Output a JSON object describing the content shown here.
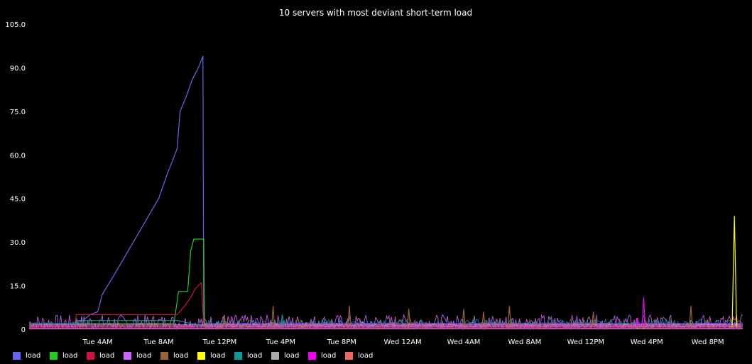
{
  "chart_data": {
    "type": "line",
    "title": "10 servers with most deviant short-term load",
    "xlabel": "",
    "ylabel": "",
    "ylim": [
      0,
      105
    ],
    "yticks": [
      "0",
      "15.0",
      "30.0",
      "45.0",
      "60.0",
      "75.0",
      "90.0",
      "105.0"
    ],
    "xlim_hours": [
      -0.5,
      46.3
    ],
    "xticks": [
      {
        "label": "Tue  4AM",
        "hour": 4
      },
      {
        "label": "Tue  8AM",
        "hour": 8
      },
      {
        "label": "Tue 12PM",
        "hour": 12
      },
      {
        "label": "Tue  4PM",
        "hour": 16
      },
      {
        "label": "Tue  8PM",
        "hour": 20
      },
      {
        "label": "Wed 12AM",
        "hour": 24
      },
      {
        "label": "Wed  4AM",
        "hour": 28
      },
      {
        "label": "Wed  8AM",
        "hour": 32
      },
      {
        "label": "Wed 12PM",
        "hour": 36
      },
      {
        "label": "Wed  4PM",
        "hour": 40
      },
      {
        "label": "Wed  8PM",
        "hour": 44
      }
    ],
    "grid": false,
    "legend_position": "bottom-left",
    "series": [
      {
        "name": "load",
        "color": "#6666ee",
        "points": [
          [
            -0.5,
            2
          ],
          [
            2.5,
            2
          ],
          [
            3.0,
            3
          ],
          [
            3.5,
            5
          ],
          [
            4.0,
            6
          ],
          [
            4.3,
            12
          ],
          [
            5,
            18
          ],
          [
            6,
            27
          ],
          [
            7,
            36
          ],
          [
            8,
            45
          ],
          [
            8.6,
            54
          ],
          [
            9.2,
            62
          ],
          [
            9.4,
            75
          ],
          [
            9.8,
            80
          ],
          [
            10.2,
            86
          ],
          [
            10.6,
            90
          ],
          [
            10.9,
            94
          ],
          [
            10.95,
            2
          ],
          [
            46.3,
            2
          ]
        ]
      },
      {
        "name": "load",
        "color": "#22cc22",
        "points": [
          [
            -0.5,
            2
          ],
          [
            9.0,
            2
          ],
          [
            9.3,
            13
          ],
          [
            9.9,
            13
          ],
          [
            10.0,
            20
          ],
          [
            10.1,
            27
          ],
          [
            10.3,
            31
          ],
          [
            10.95,
            31
          ],
          [
            11.0,
            1
          ],
          [
            46.3,
            1
          ]
        ]
      },
      {
        "name": "load",
        "color": "#cc1144",
        "points": [
          [
            -0.5,
            2
          ],
          [
            2.5,
            2
          ],
          [
            2.6,
            5
          ],
          [
            9.2,
            5
          ],
          [
            9.7,
            8
          ],
          [
            10.1,
            11
          ],
          [
            10.4,
            14
          ],
          [
            10.8,
            16
          ],
          [
            10.95,
            1
          ],
          [
            46.3,
            1
          ]
        ]
      },
      {
        "name": "load",
        "color": "#cc66ff",
        "points": [
          [
            -0.5,
            1.5
          ],
          [
            46.3,
            1.5
          ]
        ]
      },
      {
        "name": "load",
        "color": "#996633",
        "points": [
          [
            -0.5,
            0.5
          ],
          [
            12.2,
            0.5
          ],
          [
            12.3,
            5
          ],
          [
            12.4,
            0.5
          ],
          [
            15.4,
            0.5
          ],
          [
            15.5,
            8
          ],
          [
            15.6,
            0.5
          ],
          [
            20.4,
            0.5
          ],
          [
            20.5,
            8
          ],
          [
            20.6,
            0.5
          ],
          [
            24.3,
            0.5
          ],
          [
            24.4,
            7
          ],
          [
            24.5,
            0.5
          ],
          [
            27.9,
            0.5
          ],
          [
            28.0,
            7
          ],
          [
            28.1,
            0.5
          ],
          [
            29.2,
            0.5
          ],
          [
            29.3,
            6
          ],
          [
            29.4,
            0.5
          ],
          [
            30.9,
            0.5
          ],
          [
            31.0,
            8
          ],
          [
            31.1,
            0.5
          ],
          [
            36.4,
            0.5
          ],
          [
            36.5,
            6
          ],
          [
            36.6,
            0.5
          ],
          [
            42.8,
            0.5
          ],
          [
            42.9,
            8
          ],
          [
            43.0,
            0.5
          ],
          [
            46.3,
            0.5
          ]
        ]
      },
      {
        "name": "load",
        "color": "#ffff00",
        "points": [
          [
            -0.5,
            0.3
          ],
          [
            45.6,
            0.3
          ],
          [
            45.75,
            39
          ],
          [
            45.9,
            0.3
          ],
          [
            46.3,
            0.3
          ]
        ]
      },
      {
        "name": "load",
        "color": "#119999",
        "points": [
          [
            -0.5,
            2
          ],
          [
            2.5,
            2
          ],
          [
            2.6,
            3
          ],
          [
            9.2,
            3
          ],
          [
            11.0,
            1
          ],
          [
            16.0,
            1
          ],
          [
            16.1,
            5
          ],
          [
            16.2,
            1
          ],
          [
            46.3,
            1
          ]
        ]
      },
      {
        "name": "load",
        "color": "#aaaaaa",
        "points": [
          [
            -0.5,
            0.2
          ],
          [
            46.3,
            0.2
          ]
        ]
      },
      {
        "name": "load",
        "color": "#ee00ee",
        "points": [
          [
            -0.5,
            0.5
          ],
          [
            39.3,
            0.5
          ],
          [
            39.4,
            4
          ],
          [
            39.5,
            0.5
          ],
          [
            39.7,
            0.5
          ],
          [
            39.8,
            11
          ],
          [
            39.9,
            0.5
          ],
          [
            46.3,
            0.5
          ]
        ]
      },
      {
        "name": "load",
        "color": "#ee6666",
        "points": [
          [
            -0.5,
            1
          ],
          [
            46.3,
            1
          ]
        ]
      }
    ]
  }
}
